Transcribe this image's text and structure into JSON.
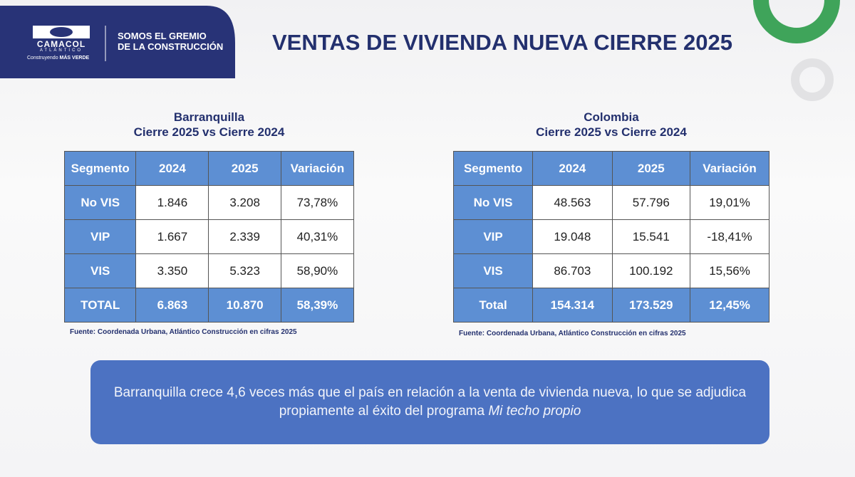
{
  "header": {
    "logo_name": "CAMACOL",
    "logo_region": "ATLÁNTICO",
    "logo_slogan_1": "Construyendo",
    "logo_slogan_2": "MÁS VERDE",
    "tagline_1": "SOMOS EL GREMIO",
    "tagline_2": "DE LA CONSTRUCCIÓN",
    "title": "VENTAS DE VIVIENDA NUEVA CIERRE 2025"
  },
  "tables": [
    {
      "caption_1": "Barranquilla",
      "caption_2": "Cierre 2025 vs Cierre 2024",
      "columns": [
        "Segmento",
        "2024",
        "2025",
        "Variación"
      ],
      "rows": [
        [
          "No VIS",
          "1.846",
          "3.208",
          "73,78%"
        ],
        [
          "VIP",
          "1.667",
          "2.339",
          "40,31%"
        ],
        [
          "VIS",
          "3.350",
          "5.323",
          "58,90%"
        ],
        [
          "TOTAL",
          "6.863",
          "10.870",
          "58,39%"
        ]
      ],
      "source": "Fuente: Coordenada Urbana, Atlántico Construcción en cifras 2025"
    },
    {
      "caption_1": "Colombia",
      "caption_2": "Cierre 2025 vs Cierre 2024",
      "columns": [
        "Segmento",
        "2024",
        "2025",
        "Variación"
      ],
      "rows": [
        [
          "No VIS",
          "48.563",
          "57.796",
          "19,01%"
        ],
        [
          "VIP",
          "19.048",
          "15.541",
          "-18,41%"
        ],
        [
          "VIS",
          "86.703",
          "100.192",
          "15,56%"
        ],
        [
          "Total",
          "154.314",
          "173.529",
          "12,45%"
        ]
      ],
      "source": "Fuente: Coordenada Urbana, Atlántico Construcción en cifras 2025"
    }
  ],
  "conclusion": {
    "text": "Barranquilla crece 4,6 veces más que el país en relación a la venta de vivienda nueva, lo que se adjudica propiamente al éxito del programa",
    "emphasis": "Mi techo propio"
  }
}
